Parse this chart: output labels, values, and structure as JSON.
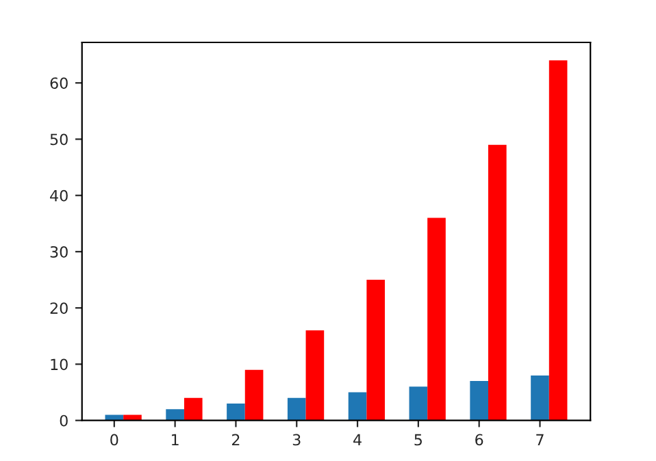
{
  "chart_data": {
    "type": "bar",
    "xlim": [
      -0.53,
      7.83
    ],
    "xticks": [
      0,
      1,
      2,
      3,
      4,
      5,
      6,
      7
    ],
    "ylim": [
      0,
      67.2
    ],
    "yticks": [
      0,
      10,
      20,
      30,
      40,
      50,
      60
    ],
    "grid": false,
    "series": [
      {
        "color": "#1f77b4",
        "x": [
          0,
          1,
          2,
          3,
          4,
          5,
          6,
          7
        ],
        "values": [
          1,
          2,
          3,
          4,
          5,
          6,
          7,
          8
        ]
      },
      {
        "color": "#ff0000",
        "x": [
          0.3,
          1.3,
          2.3,
          3.3,
          4.3,
          5.3,
          6.3,
          7.3
        ],
        "values": [
          1,
          4,
          9,
          16,
          25,
          36,
          49,
          64
        ]
      }
    ]
  }
}
